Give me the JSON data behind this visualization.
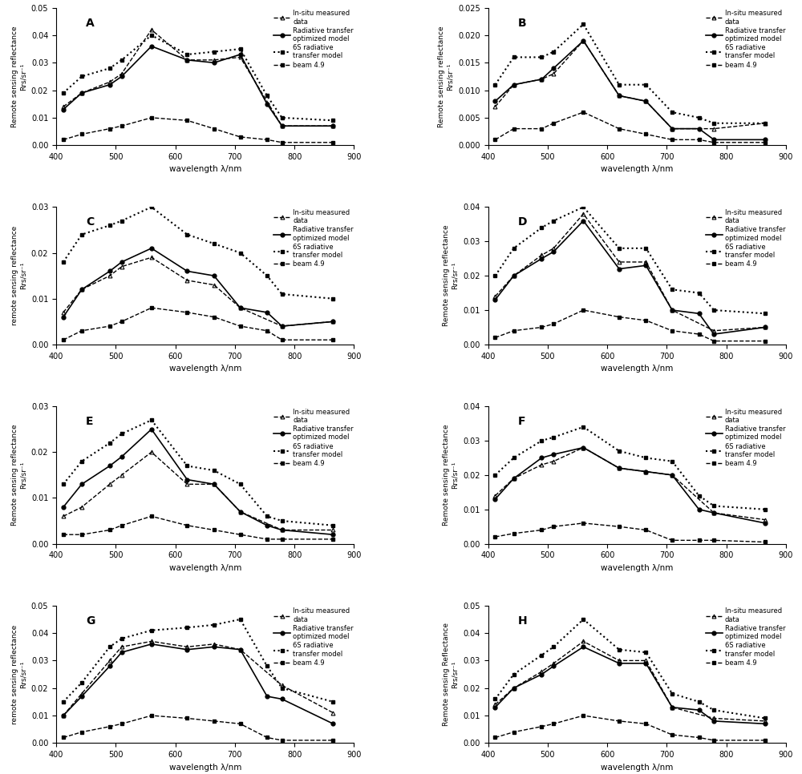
{
  "wavelengths": [
    412,
    443,
    490,
    510,
    560,
    620,
    665,
    709,
    754,
    779,
    865
  ],
  "panels": [
    {
      "label": "A",
      "ylim": [
        0,
        0.05
      ],
      "yticks": [
        0,
        0.01,
        0.02,
        0.03,
        0.04,
        0.05
      ],
      "ylabel": "Remote sensing reflectance\nRrs/sr⁻¹",
      "insitu": [
        0.014,
        0.019,
        0.023,
        0.026,
        0.042,
        0.031,
        0.031,
        0.032,
        null,
        0.007,
        0.007
      ],
      "radiative": [
        0.013,
        0.019,
        0.022,
        0.025,
        0.036,
        0.031,
        0.03,
        0.033,
        0.015,
        0.007,
        0.007
      ],
      "sixs": [
        0.019,
        0.025,
        0.028,
        0.031,
        0.04,
        0.033,
        0.034,
        0.035,
        0.018,
        0.01,
        0.009
      ],
      "beam": [
        0.002,
        0.004,
        0.006,
        0.007,
        0.01,
        0.009,
        0.006,
        0.003,
        0.002,
        0.001,
        0.001
      ]
    },
    {
      "label": "B",
      "ylim": [
        0,
        0.025
      ],
      "yticks": [
        0,
        0.005,
        0.01,
        0.015,
        0.02,
        0.025
      ],
      "ylabel": "Remote sensing reflectance\nRrs/sr⁻¹",
      "insitu": [
        0.007,
        0.011,
        0.012,
        0.013,
        0.019,
        0.009,
        0.008,
        0.003,
        null,
        0.003,
        0.004
      ],
      "radiative": [
        0.008,
        0.011,
        0.012,
        0.014,
        0.019,
        0.009,
        0.008,
        0.003,
        0.003,
        0.001,
        0.001
      ],
      "sixs": [
        0.011,
        0.016,
        0.016,
        0.017,
        0.022,
        0.011,
        0.011,
        0.006,
        0.005,
        0.004,
        0.004
      ],
      "beam": [
        0.001,
        0.003,
        0.003,
        0.004,
        0.006,
        0.003,
        0.002,
        0.001,
        0.001,
        0.0005,
        0.0005
      ]
    },
    {
      "label": "C",
      "ylim": [
        0,
        0.03
      ],
      "yticks": [
        0,
        0.01,
        0.02,
        0.03
      ],
      "ylabel": "remote sensing reflectance\nRrs/sr⁻¹",
      "insitu": [
        0.007,
        0.012,
        0.015,
        0.017,
        0.019,
        0.014,
        0.013,
        0.008,
        null,
        0.004,
        0.005
      ],
      "radiative": [
        0.006,
        0.012,
        0.016,
        0.018,
        0.021,
        0.016,
        0.015,
        0.008,
        0.007,
        0.004,
        0.005
      ],
      "sixs": [
        0.018,
        0.024,
        0.026,
        0.027,
        0.03,
        0.024,
        0.022,
        0.02,
        0.015,
        0.011,
        0.01
      ],
      "beam": [
        0.001,
        0.003,
        0.004,
        0.005,
        0.008,
        0.007,
        0.006,
        0.004,
        0.003,
        0.001,
        0.001
      ]
    },
    {
      "label": "D",
      "ylim": [
        0,
        0.04
      ],
      "yticks": [
        0,
        0.01,
        0.02,
        0.03,
        0.04
      ],
      "ylabel": "Remote sensing reflectance\nRrs/sr⁻¹",
      "insitu": [
        0.014,
        0.02,
        0.026,
        0.028,
        0.038,
        0.024,
        0.024,
        0.01,
        null,
        0.004,
        0.005
      ],
      "radiative": [
        0.013,
        0.02,
        0.025,
        0.027,
        0.036,
        0.022,
        0.023,
        0.01,
        0.009,
        0.003,
        0.005
      ],
      "sixs": [
        0.02,
        0.028,
        0.034,
        0.036,
        0.04,
        0.028,
        0.028,
        0.016,
        0.015,
        0.01,
        0.009
      ],
      "beam": [
        0.002,
        0.004,
        0.005,
        0.006,
        0.01,
        0.008,
        0.007,
        0.004,
        0.003,
        0.001,
        0.001
      ]
    },
    {
      "label": "E",
      "ylim": [
        0,
        0.03
      ],
      "yticks": [
        0,
        0.01,
        0.02,
        0.03
      ],
      "ylabel": "Remote sensing reflectance\nRrs/sr⁻¹",
      "insitu": [
        0.006,
        0.008,
        0.013,
        0.015,
        0.02,
        0.013,
        0.013,
        0.007,
        null,
        0.003,
        0.003
      ],
      "radiative": [
        0.008,
        0.013,
        0.017,
        0.019,
        0.025,
        0.014,
        0.013,
        0.007,
        0.004,
        0.003,
        0.002
      ],
      "sixs": [
        0.013,
        0.018,
        0.022,
        0.024,
        0.027,
        0.017,
        0.016,
        0.013,
        0.006,
        0.005,
        0.004
      ],
      "beam": [
        0.002,
        0.002,
        0.003,
        0.004,
        0.006,
        0.004,
        0.003,
        0.002,
        0.001,
        0.001,
        0.001
      ]
    },
    {
      "label": "F",
      "ylim": [
        0,
        0.04
      ],
      "yticks": [
        0,
        0.01,
        0.02,
        0.03,
        0.04
      ],
      "ylabel": "Remote sensing reflectance\nRrs/sr⁻¹",
      "insitu": [
        0.014,
        0.019,
        0.023,
        0.024,
        0.028,
        0.022,
        0.021,
        0.02,
        null,
        0.009,
        0.007
      ],
      "radiative": [
        0.013,
        0.019,
        0.025,
        0.026,
        0.028,
        0.022,
        0.021,
        0.02,
        0.01,
        0.009,
        0.006
      ],
      "sixs": [
        0.02,
        0.025,
        0.03,
        0.031,
        0.034,
        0.027,
        0.025,
        0.024,
        0.014,
        0.011,
        0.01
      ],
      "beam": [
        0.002,
        0.003,
        0.004,
        0.005,
        0.006,
        0.005,
        0.004,
        0.001,
        0.001,
        0.001,
        0.0005
      ]
    },
    {
      "label": "G",
      "ylim": [
        0,
        0.05
      ],
      "yticks": [
        0,
        0.01,
        0.02,
        0.03,
        0.04,
        0.05
      ],
      "ylabel": "remote sensing reflectance\nRrs/sr⁻¹",
      "insitu": [
        0.01,
        0.018,
        0.03,
        0.035,
        0.037,
        0.035,
        0.036,
        0.034,
        null,
        0.021,
        0.011
      ],
      "radiative": [
        0.01,
        0.017,
        0.028,
        0.033,
        0.036,
        0.034,
        0.035,
        0.034,
        0.017,
        0.016,
        0.007
      ],
      "sixs": [
        0.015,
        0.022,
        0.035,
        0.038,
        0.041,
        0.042,
        0.043,
        0.045,
        0.028,
        0.02,
        0.015
      ],
      "beam": [
        0.002,
        0.004,
        0.006,
        0.007,
        0.01,
        0.009,
        0.008,
        0.007,
        0.002,
        0.001,
        0.001
      ]
    },
    {
      "label": "H",
      "ylim": [
        0,
        0.05
      ],
      "yticks": [
        0,
        0.01,
        0.02,
        0.03,
        0.04,
        0.05
      ],
      "ylabel": "Remote sensing Reflectance\nRrs/sr⁻¹",
      "insitu": [
        0.014,
        0.02,
        0.026,
        0.029,
        0.037,
        0.03,
        0.03,
        0.013,
        null,
        0.009,
        0.008
      ],
      "radiative": [
        0.013,
        0.02,
        0.025,
        0.028,
        0.035,
        0.029,
        0.029,
        0.013,
        0.012,
        0.008,
        0.007
      ],
      "sixs": [
        0.016,
        0.025,
        0.032,
        0.035,
        0.045,
        0.034,
        0.033,
        0.018,
        0.015,
        0.012,
        0.009
      ],
      "beam": [
        0.002,
        0.004,
        0.006,
        0.007,
        0.01,
        0.008,
        0.007,
        0.003,
        0.002,
        0.001,
        0.001
      ]
    }
  ],
  "xlabel": "wavelength λ/nm"
}
